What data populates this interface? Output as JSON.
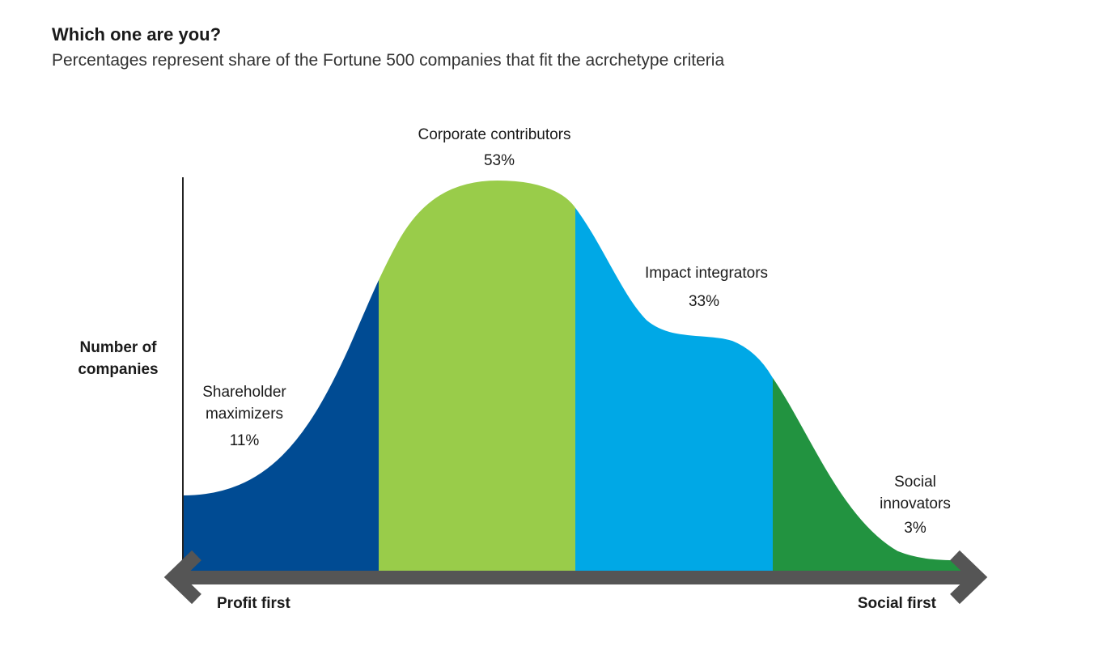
{
  "title": "Which one are you?",
  "subtitle": "Percentages represent share of the Fortune 500 companies that fit the acrchetype criteria",
  "chart_data": {
    "type": "area",
    "title": "Which one are you?",
    "subtitle": "Percentages represent share of the Fortune 500 companies that fit the acrchetype criteria",
    "ylabel": "Number of companies",
    "x_axis_left_label": "Profit first",
    "x_axis_right_label": "Social first",
    "segments": [
      {
        "name": "Shareholder maximizers",
        "line1": "Shareholder",
        "line2": "maximizers",
        "share_label": "11%",
        "value": 11,
        "color": "#004b93"
      },
      {
        "name": "Corporate contributors",
        "line1": "Corporate contributors",
        "line2": "",
        "share_label": "53%",
        "value": 53,
        "color": "#99cc4a"
      },
      {
        "name": "Impact integrators",
        "line1": "Impact integrators",
        "line2": "",
        "share_label": "33%",
        "value": 33,
        "color": "#00a8e6"
      },
      {
        "name": "Social innovators",
        "line1": "Social",
        "line2": "innovators",
        "share_label": "3%",
        "value": 3,
        "color": "#229340"
      }
    ],
    "axis_color": "#555555"
  }
}
